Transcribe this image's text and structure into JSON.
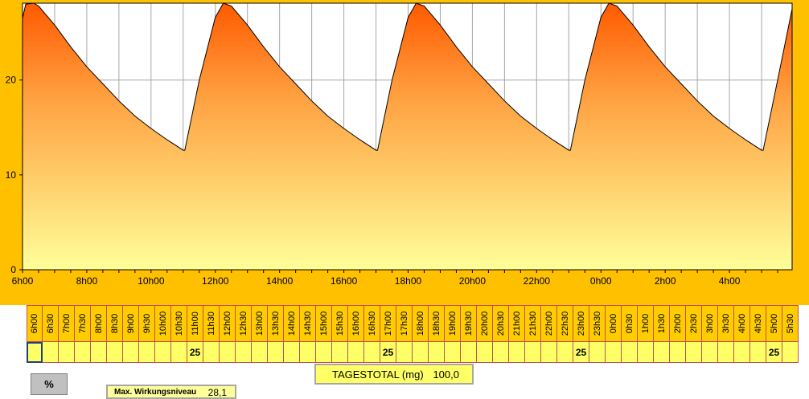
{
  "chart_data": {
    "type": "area",
    "y_ticks": [
      "0",
      "10",
      "20"
    ],
    "ylim": [
      0,
      28.1
    ],
    "x_ticks": [
      "6h00",
      "8h00",
      "10h00",
      "12h00",
      "14h00",
      "16h00",
      "18h00",
      "20h00",
      "22h00",
      "0h00",
      "2h00",
      "4h00"
    ],
    "x_hours": [
      0,
      2,
      4,
      6,
      8,
      10,
      12,
      14,
      16,
      18,
      20,
      22
    ],
    "xlim": [
      0,
      23.95
    ],
    "grid": true,
    "fill_colors": {
      "top": "#ff5a00",
      "bottom": "#ffff99"
    },
    "series": [
      {
        "x": [
          0,
          0.1,
          0.35,
          0.5,
          1,
          1.5,
          2,
          2.5,
          3,
          3.5,
          4,
          4.5,
          5,
          5.05,
          5.5,
          6,
          6.25,
          6.5,
          7,
          7.5,
          8,
          8.5,
          9,
          9.5,
          10,
          10.5,
          11,
          11.05,
          11.5,
          12,
          12.25,
          12.5,
          13,
          13.5,
          14,
          14.5,
          15,
          15.5,
          16,
          16.5,
          17,
          17.05,
          17.5,
          18,
          18.25,
          18.5,
          19,
          19.5,
          20,
          20.5,
          21,
          21.5,
          22,
          22.5,
          23,
          23.05,
          23.5,
          23.95
        ],
        "y": [
          26.5,
          28.0,
          28.1,
          27.8,
          25.8,
          23.5,
          21.4,
          19.6,
          17.8,
          16.2,
          14.9,
          13.7,
          12.6,
          12.6,
          20.0,
          26.6,
          28.1,
          27.8,
          25.8,
          23.5,
          21.4,
          19.6,
          17.8,
          16.2,
          14.9,
          13.7,
          12.6,
          12.6,
          20.0,
          26.6,
          28.1,
          27.8,
          25.8,
          23.5,
          21.4,
          19.6,
          17.8,
          16.2,
          14.9,
          13.7,
          12.6,
          12.6,
          20.0,
          26.6,
          28.1,
          27.8,
          25.8,
          23.5,
          21.4,
          19.6,
          17.8,
          16.2,
          14.9,
          13.7,
          12.6,
          12.6,
          20.0,
          27.5
        ]
      }
    ]
  },
  "grid": {
    "time_labels": [
      "6h00",
      "6h30",
      "7h00",
      "7h30",
      "8h00",
      "8h30",
      "9h00",
      "9h30",
      "10h00",
      "10h30",
      "11h00",
      "11h30",
      "12h00",
      "12h30",
      "13h00",
      "13h30",
      "14h00",
      "14h30",
      "15h00",
      "15h30",
      "16h00",
      "16h30",
      "17h00",
      "17h30",
      "18h00",
      "18h30",
      "19h00",
      "19h30",
      "20h00",
      "20h30",
      "21h00",
      "21h30",
      "22h00",
      "22h30",
      "23h00",
      "23h30",
      "0h00",
      "0h30",
      "1h00",
      "1h30",
      "2h00",
      "2h30",
      "3h00",
      "3h30",
      "4h00",
      "4h30",
      "5h00",
      "5h30"
    ],
    "doses": [
      "",
      "",
      "",
      "",
      "",
      "",
      "",
      "",
      "",
      "",
      "25",
      "",
      "",
      "",
      "",
      "",
      "",
      "",
      "",
      "",
      "",
      "",
      "25",
      "",
      "",
      "",
      "",
      "",
      "",
      "",
      "",
      "",
      "",
      "",
      "25",
      "",
      "",
      "",
      "",
      "",
      "",
      "",
      "",
      "",
      "",
      "",
      "25",
      ""
    ]
  },
  "total": {
    "label": "TAGESTOTAL (mg)",
    "value": "100,0"
  },
  "percent_button": {
    "label": "%"
  },
  "max_level": {
    "label": "Max. Wirkungsniveau",
    "value": "28,1"
  }
}
